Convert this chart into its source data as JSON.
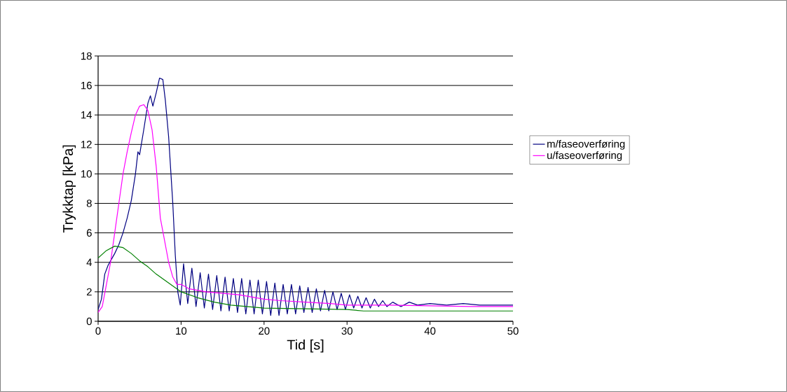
{
  "chart_data": {
    "type": "line",
    "xlabel": "Tid [s]",
    "ylabel": "Trykktap [kPa]",
    "xlim": [
      0,
      50
    ],
    "ylim": [
      0,
      18
    ],
    "xticks": [
      0,
      10,
      20,
      30,
      40,
      50
    ],
    "yticks": [
      0,
      2,
      4,
      6,
      8,
      10,
      12,
      14,
      16,
      18
    ],
    "grid": "y",
    "legend": "right",
    "marker": "none",
    "line_style": "solid",
    "series": [
      {
        "name": "m/faseoverføring",
        "color": "#000080",
        "x": [
          0,
          0.4,
          0.8,
          1.2,
          1.6,
          2.0,
          2.5,
          3.0,
          3.5,
          4.0,
          4.5,
          4.8,
          5.0,
          5.5,
          6.0,
          6.3,
          6.6,
          7.0,
          7.4,
          7.8,
          8.1,
          8.5,
          9.0,
          9.3,
          9.6,
          9.9,
          10.3,
          10.8,
          11.3,
          11.8,
          12.3,
          12.8,
          13.3,
          13.8,
          14.3,
          14.8,
          15.3,
          15.8,
          16.3,
          16.8,
          17.3,
          17.8,
          18.3,
          18.8,
          19.3,
          19.8,
          20.3,
          20.8,
          21.3,
          21.8,
          22.3,
          22.8,
          23.3,
          23.8,
          24.3,
          24.8,
          25.3,
          25.8,
          26.3,
          26.8,
          27.3,
          27.8,
          28.3,
          28.8,
          29.3,
          29.8,
          30.3,
          30.8,
          31.3,
          31.8,
          32.3,
          32.8,
          33.3,
          33.8,
          34.3,
          34.8,
          35.5,
          36.5,
          37.5,
          38.5,
          40,
          42,
          44,
          46,
          48,
          50
        ],
        "values": [
          0.8,
          1.5,
          3.2,
          3.8,
          4.2,
          4.6,
          5.2,
          6.0,
          7.0,
          8.2,
          10.0,
          11.5,
          11.3,
          13.0,
          14.8,
          15.3,
          14.6,
          15.5,
          16.5,
          16.4,
          15.0,
          12.5,
          8.0,
          4.5,
          2.0,
          1.1,
          3.9,
          1.2,
          3.6,
          1.0,
          3.3,
          0.9,
          3.2,
          0.8,
          3.1,
          0.7,
          3.0,
          0.7,
          2.9,
          0.6,
          2.9,
          0.5,
          2.8,
          0.5,
          2.8,
          0.5,
          2.7,
          0.4,
          2.6,
          0.4,
          2.5,
          0.5,
          2.5,
          0.5,
          2.4,
          0.6,
          2.3,
          0.6,
          2.2,
          0.7,
          2.1,
          0.7,
          2.0,
          0.8,
          1.9,
          0.8,
          1.8,
          0.9,
          1.7,
          0.9,
          1.6,
          0.9,
          1.5,
          1.0,
          1.4,
          1.0,
          1.3,
          1.0,
          1.3,
          1.1,
          1.2,
          1.1,
          1.2,
          1.1,
          1.1,
          1.1
        ]
      },
      {
        "name": "u/faseoverføring",
        "color": "#ff00ff",
        "x": [
          0,
          0.5,
          1,
          1.5,
          2,
          2.5,
          3,
          3.5,
          4,
          4.5,
          5,
          5.5,
          6,
          6.5,
          7,
          7.5,
          8,
          8.5,
          9,
          9.5,
          10,
          11,
          12,
          13,
          15,
          17,
          20,
          22,
          25,
          28,
          30,
          35,
          40,
          45,
          50
        ],
        "values": [
          0.6,
          1.0,
          2.5,
          4.0,
          6.0,
          8.0,
          10.0,
          11.5,
          12.8,
          14.0,
          14.6,
          14.7,
          14.3,
          13.0,
          10.5,
          7.0,
          5.5,
          4.0,
          3.0,
          2.5,
          2.5,
          2.2,
          2.1,
          2.0,
          1.9,
          1.8,
          1.5,
          1.4,
          1.3,
          1.2,
          1.1,
          1.1,
          1.05,
          1.0,
          1.0
        ]
      },
      {
        "color": "#008000",
        "x": [
          0,
          1,
          2,
          3,
          4,
          5,
          6,
          7,
          8,
          9,
          10,
          12,
          14,
          16,
          18,
          20,
          25,
          30,
          32,
          50
        ],
        "values": [
          4.3,
          4.8,
          5.1,
          5.0,
          4.6,
          4.1,
          3.7,
          3.2,
          2.8,
          2.4,
          2.0,
          1.6,
          1.3,
          1.1,
          1.0,
          0.9,
          0.85,
          0.8,
          0.7,
          0.7
        ]
      }
    ]
  }
}
